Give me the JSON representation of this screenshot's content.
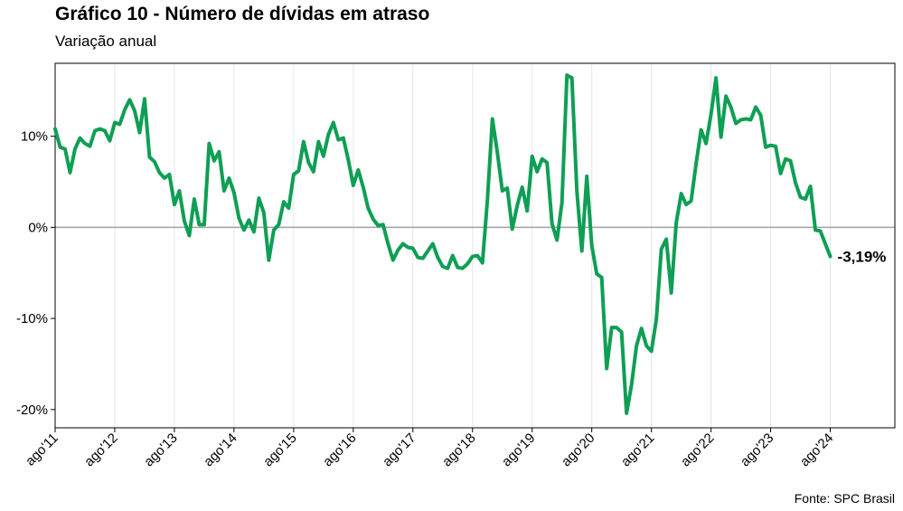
{
  "title": "Gráfico 10 - Número de dívidas em atraso",
  "subtitle": "Variação anual",
  "source": "Fonte: SPC Brasil",
  "colors": {
    "line": "#0e9f54",
    "zero_line": "#a0a0a0",
    "grid": "#e6e6e6",
    "frame": "#000000"
  },
  "chart_data": {
    "type": "line",
    "title": "Gráfico 10 - Número de dívidas em atraso",
    "subtitle": "Variação anual",
    "xlabel": "",
    "ylabel": "",
    "ylim": [
      -22,
      18
    ],
    "xlim": [
      "2011-08",
      "2025-09"
    ],
    "y_ticks": [
      {
        "value": 10,
        "label": "10%"
      },
      {
        "value": 0,
        "label": "0%"
      },
      {
        "value": -10,
        "label": "-10%"
      },
      {
        "value": -20,
        "label": "-20%"
      }
    ],
    "x_ticks": [
      {
        "value": "2011-08",
        "label": "ago'11"
      },
      {
        "value": "2012-08",
        "label": "ago'12"
      },
      {
        "value": "2013-08",
        "label": "ago'13"
      },
      {
        "value": "2014-08",
        "label": "ago'14"
      },
      {
        "value": "2015-08",
        "label": "ago'15"
      },
      {
        "value": "2016-08",
        "label": "ago'16"
      },
      {
        "value": "2017-08",
        "label": "ago'17"
      },
      {
        "value": "2018-08",
        "label": "ago'18"
      },
      {
        "value": "2019-08",
        "label": "ago'19"
      },
      {
        "value": "2020-08",
        "label": "ago'20"
      },
      {
        "value": "2021-08",
        "label": "ago'21"
      },
      {
        "value": "2022-08",
        "label": "ago'22"
      },
      {
        "value": "2023-08",
        "label": "ago'23"
      },
      {
        "value": "2024-08",
        "label": "ago'24"
      }
    ],
    "grid": true,
    "legend": "none",
    "end_label": "-3,19%",
    "series": [
      {
        "x": [
          "2011-08",
          "2011-09",
          "2011-10",
          "2011-11",
          "2011-12",
          "2012-01",
          "2012-02",
          "2012-03",
          "2012-04",
          "2012-05",
          "2012-06",
          "2012-07",
          "2012-08",
          "2012-09",
          "2012-10",
          "2012-11",
          "2012-12",
          "2013-01",
          "2013-02",
          "2013-03",
          "2013-04",
          "2013-05",
          "2013-06",
          "2013-07",
          "2013-08",
          "2013-09",
          "2013-10",
          "2013-11",
          "2013-12",
          "2014-01",
          "2014-02",
          "2014-03",
          "2014-04",
          "2014-05",
          "2014-06",
          "2014-07",
          "2014-08",
          "2014-09",
          "2014-10",
          "2014-11",
          "2014-12",
          "2015-01",
          "2015-02",
          "2015-03",
          "2015-04",
          "2015-05",
          "2015-06",
          "2015-07",
          "2015-08",
          "2015-09",
          "2015-10",
          "2015-11",
          "2015-12",
          "2016-01",
          "2016-02",
          "2016-03",
          "2016-04",
          "2016-05",
          "2016-06",
          "2016-07",
          "2016-08",
          "2016-09",
          "2016-10",
          "2016-11",
          "2016-12",
          "2017-01",
          "2017-02",
          "2017-03",
          "2017-04",
          "2017-05",
          "2017-06",
          "2017-07",
          "2017-08",
          "2017-09",
          "2017-10",
          "2017-11",
          "2017-12",
          "2018-01",
          "2018-02",
          "2018-03",
          "2018-04",
          "2018-05",
          "2018-06",
          "2018-07",
          "2018-08",
          "2018-09",
          "2018-10",
          "2018-11",
          "2018-12",
          "2019-01",
          "2019-02",
          "2019-03",
          "2019-04",
          "2019-05",
          "2019-06",
          "2019-07",
          "2019-08",
          "2019-09",
          "2019-10",
          "2019-11",
          "2019-12",
          "2020-01",
          "2020-02",
          "2020-03",
          "2020-04",
          "2020-05",
          "2020-06",
          "2020-07",
          "2020-08",
          "2020-09",
          "2020-10",
          "2020-11",
          "2020-12",
          "2021-01",
          "2021-02",
          "2021-03",
          "2021-04",
          "2021-05",
          "2021-06",
          "2021-07",
          "2021-08",
          "2021-09",
          "2021-10",
          "2021-11",
          "2021-12",
          "2022-01",
          "2022-02",
          "2022-03",
          "2022-04",
          "2022-05",
          "2022-06",
          "2022-07",
          "2022-08",
          "2022-09",
          "2022-10",
          "2022-11",
          "2022-12",
          "2023-01",
          "2023-02",
          "2023-03",
          "2023-04",
          "2023-05",
          "2023-06",
          "2023-07",
          "2023-08",
          "2023-09",
          "2023-10",
          "2023-11",
          "2023-12",
          "2024-01",
          "2024-02",
          "2024-03",
          "2024-04",
          "2024-05",
          "2024-06",
          "2024-07",
          "2024-08"
        ],
        "y": [
          10.8,
          8.8,
          8.6,
          6.0,
          8.6,
          9.8,
          9.2,
          8.9,
          10.6,
          10.8,
          10.6,
          9.5,
          11.5,
          11.3,
          12.9,
          14.0,
          12.8,
          10.4,
          14.1,
          7.7,
          7.2,
          6.0,
          5.4,
          5.8,
          2.5,
          4.0,
          0.7,
          -0.9,
          3.1,
          0.3,
          0.3,
          9.2,
          7.3,
          8.3,
          4.0,
          5.4,
          3.8,
          1.0,
          -0.3,
          0.8,
          -0.5,
          3.2,
          1.6,
          -3.6,
          -0.3,
          0.3,
          2.8,
          2.1,
          5.8,
          6.2,
          9.4,
          7.1,
          6.1,
          9.4,
          7.8,
          10.2,
          11.5,
          9.6,
          9.8,
          7.4,
          4.6,
          6.3,
          4.4,
          2.1,
          0.9,
          0.2,
          0.3,
          -1.8,
          -3.6,
          -2.5,
          -1.8,
          -2.2,
          -2.3,
          -3.3,
          -3.4,
          -2.6,
          -1.8,
          -3.3,
          -4.3,
          -4.5,
          -3.1,
          -4.4,
          -4.5,
          -4.0,
          -3.2,
          -3.1,
          -3.9,
          3.0,
          11.9,
          8.2,
          4.0,
          4.3,
          -0.2,
          2.4,
          4.4,
          1.8,
          7.8,
          6.1,
          7.5,
          7.1,
          0.4,
          -1.4,
          2.7,
          16.7,
          16.4,
          4.0,
          -2.6,
          5.6,
          -2.0,
          -5.1,
          -5.5,
          -15.5,
          -11.0,
          -11.0,
          -11.5,
          -20.4,
          -17.3,
          -13.0,
          -11.1,
          -13.0,
          -13.6,
          -10.1,
          -2.4,
          -1.3,
          -7.2,
          0.5,
          3.7,
          2.5,
          2.9,
          7.0,
          10.7,
          9.2,
          12.4,
          16.4,
          9.9,
          14.4,
          13.2,
          11.4,
          11.8,
          11.9,
          11.8,
          13.2,
          12.3,
          8.8,
          9.0,
          8.9,
          5.9,
          7.5,
          7.3,
          4.9,
          3.3,
          3.1,
          4.5,
          -0.3,
          -0.4,
          -1.8,
          -3.19
        ]
      }
    ]
  }
}
